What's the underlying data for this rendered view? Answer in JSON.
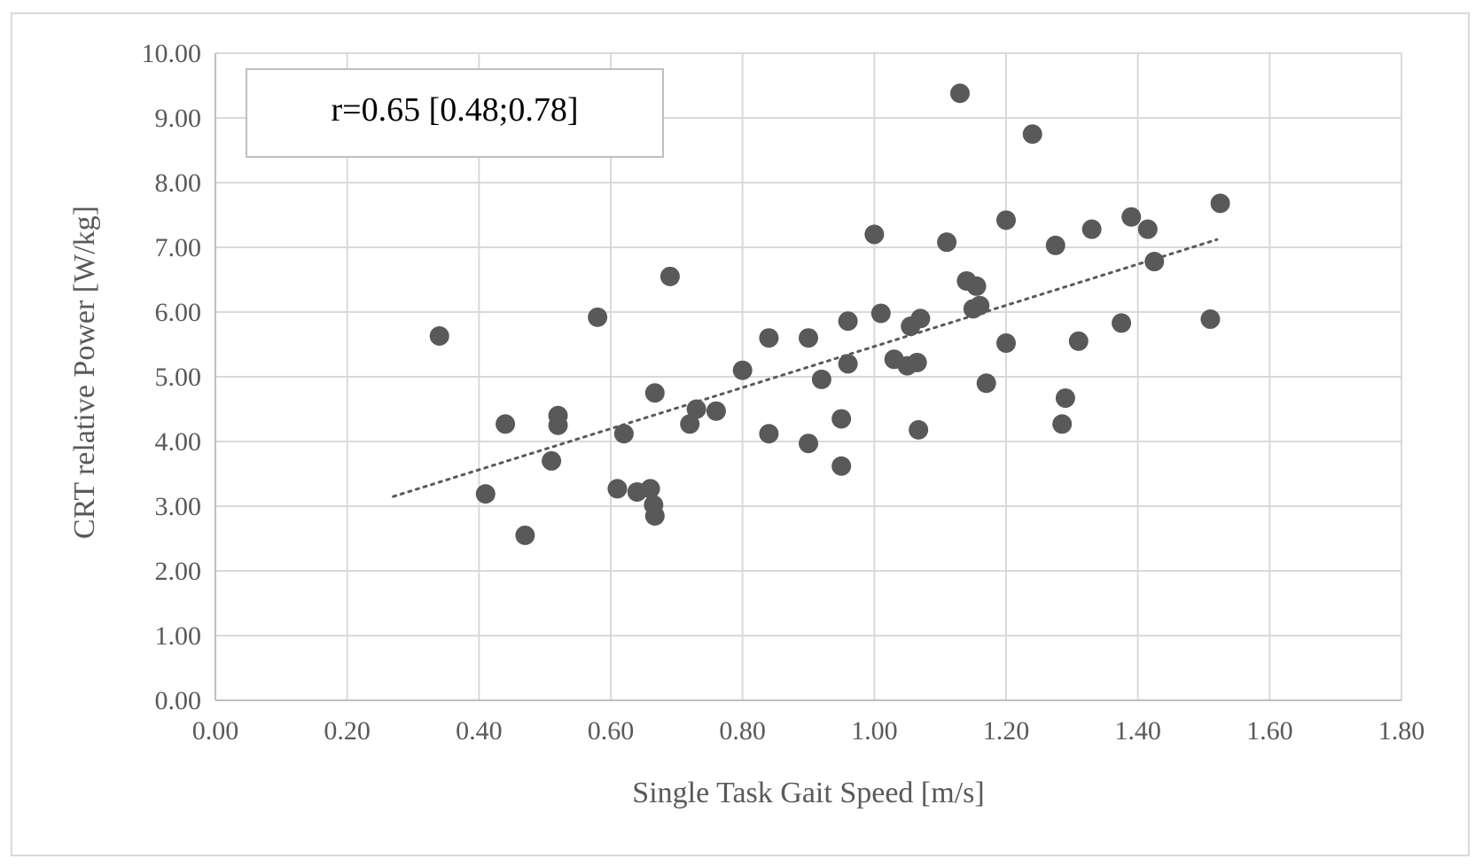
{
  "chart_data": {
    "type": "scatter",
    "title": "",
    "xlabel": "Single Task Gait Speed [m/s]",
    "ylabel": "CRT relative Power [W/kg]",
    "xlim": [
      0,
      1.8
    ],
    "ylim": [
      0,
      10
    ],
    "x_ticks": [
      "0.00",
      "0.20",
      "0.40",
      "0.60",
      "0.80",
      "1.00",
      "1.20",
      "1.40",
      "1.60",
      "1.80"
    ],
    "y_ticks": [
      "0.00",
      "1.00",
      "2.00",
      "3.00",
      "4.00",
      "5.00",
      "6.00",
      "7.00",
      "8.00",
      "9.00",
      "10.00"
    ],
    "grid": true,
    "legend": "none",
    "annotation": "r=0.65 [0.48;0.78]",
    "marker_color": "#595959",
    "trendline": {
      "type": "linear",
      "style": "dotted",
      "x": [
        0.27,
        1.52
      ],
      "y": [
        3.15,
        7.12
      ]
    },
    "series": [
      {
        "points": [
          {
            "x": 0.34,
            "y": 5.63
          },
          {
            "x": 0.41,
            "y": 3.19
          },
          {
            "x": 0.44,
            "y": 4.27
          },
          {
            "x": 0.47,
            "y": 2.55
          },
          {
            "x": 0.51,
            "y": 3.7
          },
          {
            "x": 0.52,
            "y": 4.4
          },
          {
            "x": 0.52,
            "y": 4.25
          },
          {
            "x": 0.58,
            "y": 5.92
          },
          {
            "x": 0.61,
            "y": 3.27
          },
          {
            "x": 0.62,
            "y": 4.12
          },
          {
            "x": 0.64,
            "y": 3.22
          },
          {
            "x": 0.66,
            "y": 3.27
          },
          {
            "x": 0.665,
            "y": 3.02
          },
          {
            "x": 0.667,
            "y": 2.85
          },
          {
            "x": 0.667,
            "y": 4.75
          },
          {
            "x": 0.69,
            "y": 6.55
          },
          {
            "x": 0.72,
            "y": 4.27
          },
          {
            "x": 0.73,
            "y": 4.5
          },
          {
            "x": 0.76,
            "y": 4.47
          },
          {
            "x": 0.8,
            "y": 5.1
          },
          {
            "x": 0.84,
            "y": 5.6
          },
          {
            "x": 0.84,
            "y": 4.12
          },
          {
            "x": 0.9,
            "y": 5.6
          },
          {
            "x": 0.9,
            "y": 3.97
          },
          {
            "x": 0.92,
            "y": 4.96
          },
          {
            "x": 0.95,
            "y": 4.35
          },
          {
            "x": 0.95,
            "y": 3.62
          },
          {
            "x": 0.96,
            "y": 5.86
          },
          {
            "x": 0.96,
            "y": 5.2
          },
          {
            "x": 1.0,
            "y": 7.2
          },
          {
            "x": 1.01,
            "y": 5.98
          },
          {
            "x": 1.03,
            "y": 5.27
          },
          {
            "x": 1.05,
            "y": 5.17
          },
          {
            "x": 1.055,
            "y": 5.78
          },
          {
            "x": 1.065,
            "y": 5.22
          },
          {
            "x": 1.07,
            "y": 5.9
          },
          {
            "x": 1.067,
            "y": 4.18
          },
          {
            "x": 1.11,
            "y": 7.08
          },
          {
            "x": 1.13,
            "y": 9.38
          },
          {
            "x": 1.14,
            "y": 6.48
          },
          {
            "x": 1.15,
            "y": 6.05
          },
          {
            "x": 1.155,
            "y": 6.4
          },
          {
            "x": 1.16,
            "y": 6.1
          },
          {
            "x": 1.17,
            "y": 4.9
          },
          {
            "x": 1.2,
            "y": 7.42
          },
          {
            "x": 1.2,
            "y": 5.52
          },
          {
            "x": 1.24,
            "y": 8.75
          },
          {
            "x": 1.275,
            "y": 7.03
          },
          {
            "x": 1.285,
            "y": 4.27
          },
          {
            "x": 1.29,
            "y": 4.67
          },
          {
            "x": 1.31,
            "y": 5.55
          },
          {
            "x": 1.33,
            "y": 7.28
          },
          {
            "x": 1.375,
            "y": 5.83
          },
          {
            "x": 1.39,
            "y": 7.47
          },
          {
            "x": 1.415,
            "y": 7.28
          },
          {
            "x": 1.425,
            "y": 6.78
          },
          {
            "x": 1.51,
            "y": 5.89
          },
          {
            "x": 1.525,
            "y": 7.68
          }
        ]
      }
    ]
  }
}
